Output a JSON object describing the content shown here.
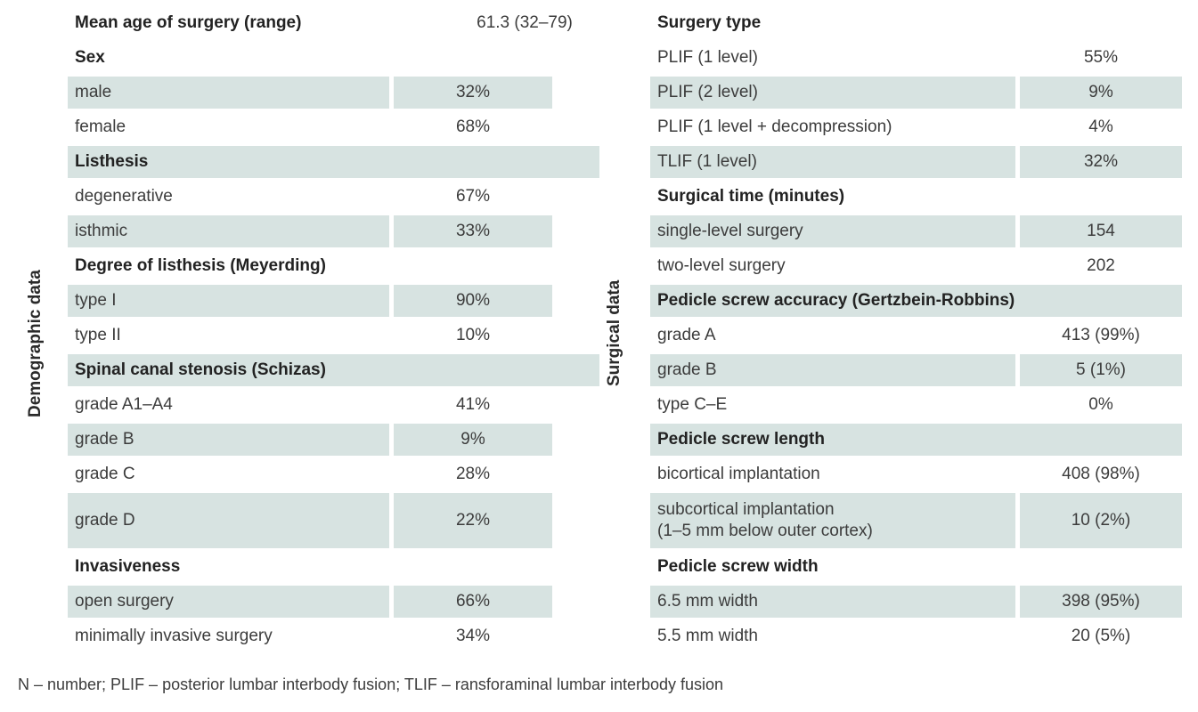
{
  "left": {
    "side_label": "Demographic data",
    "rows": [
      {
        "label": "Mean age of surgery (range)",
        "value": "61.3 (32–79)",
        "heading": true,
        "shaded": false
      },
      {
        "label": "Sex",
        "value": "",
        "heading": true,
        "shaded": false
      },
      {
        "label": "male",
        "value": "32%",
        "heading": false,
        "shaded": true
      },
      {
        "label": "female",
        "value": "68%",
        "heading": false,
        "shaded": false
      },
      {
        "label": "Listhesis",
        "value": "",
        "heading": true,
        "shaded": true
      },
      {
        "label": "degenerative",
        "value": "67%",
        "heading": false,
        "shaded": false
      },
      {
        "label": "isthmic",
        "value": "33%",
        "heading": false,
        "shaded": true
      },
      {
        "label": "Degree of listhesis (Meyerding)",
        "value": "",
        "heading": true,
        "shaded": false
      },
      {
        "label": "type I",
        "value": "90%",
        "heading": false,
        "shaded": true
      },
      {
        "label": "type II",
        "value": "10%",
        "heading": false,
        "shaded": false
      },
      {
        "label": "Spinal canal stenosis (Schizas)",
        "value": "",
        "heading": true,
        "shaded": true
      },
      {
        "label": "grade A1–A4",
        "value": "41%",
        "heading": false,
        "shaded": false
      },
      {
        "label": "grade B",
        "value": "9%",
        "heading": false,
        "shaded": true
      },
      {
        "label": "grade C",
        "value": "28%",
        "heading": false,
        "shaded": false
      },
      {
        "label": "grade D",
        "value": "22%",
        "heading": false,
        "shaded": true,
        "tall": true
      },
      {
        "label": "Invasiveness",
        "value": "",
        "heading": true,
        "shaded": false
      },
      {
        "label": "open surgery",
        "value": "66%",
        "heading": false,
        "shaded": true
      },
      {
        "label": "minimally invasive surgery",
        "value": "34%",
        "heading": false,
        "shaded": false
      }
    ]
  },
  "right": {
    "side_label": "Surgical data",
    "rows": [
      {
        "label": "Surgery type",
        "value": "",
        "heading": true,
        "shaded": false
      },
      {
        "label": "PLIF (1 level)",
        "value": "55%",
        "heading": false,
        "shaded": false
      },
      {
        "label": "PLIF (2 level)",
        "value": "9%",
        "heading": false,
        "shaded": true
      },
      {
        "label": "PLIF (1 level + decompression)",
        "value": "4%",
        "heading": false,
        "shaded": false
      },
      {
        "label": "TLIF (1 level)",
        "value": "32%",
        "heading": false,
        "shaded": true
      },
      {
        "label": "Surgical time (minutes)",
        "value": "",
        "heading": true,
        "shaded": false
      },
      {
        "label": "single-level surgery",
        "value": "154",
        "heading": false,
        "shaded": true
      },
      {
        "label": "two-level surgery",
        "value": "202",
        "heading": false,
        "shaded": false
      },
      {
        "label": "Pedicle screw accuracy (Gertzbein-Robbins)",
        "value": "",
        "heading": true,
        "shaded": true
      },
      {
        "label": "grade A",
        "value": "413 (99%)",
        "heading": false,
        "shaded": false
      },
      {
        "label": "grade B",
        "value": "5 (1%)",
        "heading": false,
        "shaded": true
      },
      {
        "label": "type C–E",
        "value": "0%",
        "heading": false,
        "shaded": false
      },
      {
        "label": "Pedicle screw length",
        "value": "",
        "heading": true,
        "shaded": true
      },
      {
        "label": "bicortical implantation",
        "value": "408 (98%)",
        "heading": false,
        "shaded": false
      },
      {
        "label": "subcortical implantation\n(1–5 mm below outer cortex)",
        "value": "10 (2%)",
        "heading": false,
        "shaded": true,
        "tall": true
      },
      {
        "label": "Pedicle screw width",
        "value": "",
        "heading": true,
        "shaded": false
      },
      {
        "label": "6.5 mm width",
        "value": "398 (95%)",
        "heading": false,
        "shaded": true
      },
      {
        "label": "5.5 mm width",
        "value": "20 (5%)",
        "heading": false,
        "shaded": false
      }
    ]
  },
  "footnote": "N – number; PLIF – posterior lumbar interbody fusion; TLIF – ransforaminal lumbar interbody fusion"
}
